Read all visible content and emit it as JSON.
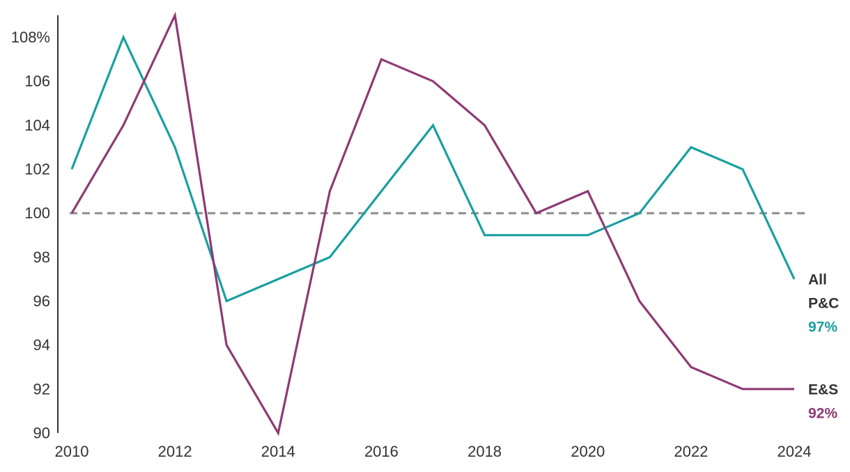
{
  "chart_data": {
    "type": "line",
    "title": "",
    "xlabel": "",
    "ylabel": "",
    "x": [
      2010,
      2011,
      2012,
      2013,
      2014,
      2015,
      2016,
      2017,
      2018,
      2019,
      2020,
      2021,
      2022,
      2023,
      2024
    ],
    "xticks": [
      "2010",
      "2012",
      "2014",
      "2016",
      "2018",
      "2020",
      "2022",
      "2024"
    ],
    "yticks": [
      "90",
      "92",
      "94",
      "96",
      "98",
      "100",
      "102",
      "104",
      "106",
      "108%"
    ],
    "xlim": [
      2010,
      2024
    ],
    "ylim": [
      90,
      109
    ],
    "reference_line": 100,
    "grid": false,
    "series": [
      {
        "name": "All P&C",
        "label_lines": [
          "All",
          "P&C"
        ],
        "end_label": "97%",
        "color": "#1a9f9f",
        "values": [
          102,
          108,
          103,
          96,
          97,
          98,
          101,
          104,
          99,
          99,
          99,
          100,
          103,
          102,
          97
        ]
      },
      {
        "name": "E&S",
        "label_lines": [
          "E&S"
        ],
        "end_label": "92%",
        "color": "#8e3a75",
        "values": [
          100,
          104,
          109,
          94,
          90,
          101,
          107,
          106,
          104,
          100,
          101,
          96,
          93,
          92,
          92
        ]
      }
    ]
  }
}
